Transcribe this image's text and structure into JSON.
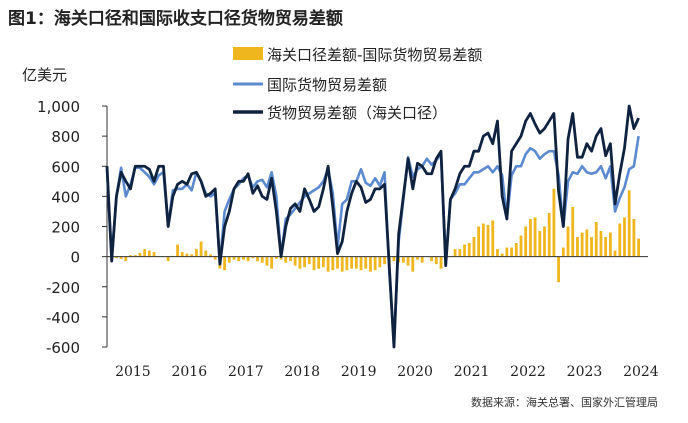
{
  "figure": {
    "title": "图1：海关口径和国际收支口径货物贸易差额",
    "source": "数据来源：海关总署、国家外汇管理局"
  },
  "colors": {
    "bar": "#f0b61e",
    "bop": "#5b8ad0",
    "goods": "#0f2340",
    "axis": "#333333"
  },
  "chart_data": {
    "type": "bar+line",
    "title": "海关口径和国际收支口径货物贸易差额",
    "ylabel": "亿美元",
    "xlabel": "",
    "ylim": [
      -600,
      1000
    ],
    "yticks": [
      1000,
      800,
      600,
      400,
      200,
      0,
      -200,
      -400,
      -600
    ],
    "ytick_labels": [
      "1,000",
      "800",
      "600",
      "400",
      "200",
      "0",
      "-200",
      "-400",
      "-600"
    ],
    "x_start": "2015-01",
    "x_end": "2024-08",
    "xticks": [
      "2015",
      "2016",
      "2017",
      "2018",
      "2019",
      "2020",
      "2021",
      "2022",
      "2023",
      "2024"
    ],
    "grid": false,
    "legend_position": "top",
    "series": [
      {
        "name": "海关口径差额-国际货物贸易差额",
        "type": "bar",
        "start": "2015-01",
        "values": [
          0,
          -20,
          -10,
          -15,
          -30,
          10,
          10,
          25,
          50,
          40,
          30,
          0,
          0,
          -30,
          5,
          80,
          30,
          20,
          15,
          50,
          100,
          40,
          15,
          -20,
          -80,
          -90,
          -40,
          -20,
          -30,
          -20,
          -30,
          -10,
          -30,
          -40,
          -60,
          -80,
          -15,
          -20,
          -40,
          -30,
          -60,
          -80,
          -70,
          -50,
          -90,
          -80,
          -70,
          -100,
          -90,
          -80,
          -100,
          -90,
          -80,
          -80,
          -90,
          -80,
          -100,
          -90,
          -70,
          -50,
          -60,
          -30,
          -40,
          -40,
          -60,
          -100,
          -20,
          -40,
          0,
          -30,
          -50,
          -80,
          0,
          0,
          50,
          50,
          80,
          90,
          130,
          200,
          220,
          210,
          240,
          50,
          20,
          60,
          60,
          90,
          140,
          200,
          250,
          260,
          170,
          200,
          290,
          450,
          -170,
          60,
          200,
          330,
          130,
          160,
          180,
          130,
          230,
          170,
          130,
          160,
          40,
          220,
          260,
          440,
          250,
          120
        ]
      },
      {
        "name": "国际货物贸易差额",
        "type": "line",
        "start": "2015-01",
        "values": [
          580,
          -20,
          400,
          590,
          400,
          480,
          590,
          590,
          560,
          530,
          480,
          540,
          560,
          200,
          440,
          450,
          450,
          480,
          440,
          560,
          500,
          420,
          400,
          420,
          -50,
          300,
          380,
          450,
          480,
          520,
          540,
          460,
          500,
          510,
          460,
          560,
          400,
          0,
          250,
          280,
          320,
          360,
          400,
          420,
          440,
          460,
          500,
          580,
          420,
          60,
          350,
          380,
          500,
          500,
          580,
          490,
          470,
          520,
          470,
          560,
          -100,
          -580,
          100,
          380,
          660,
          530,
          580,
          600,
          650,
          610,
          640,
          680,
          -30,
          380,
          420,
          480,
          480,
          520,
          560,
          560,
          580,
          600,
          560,
          600,
          540,
          250,
          540,
          600,
          600,
          680,
          720,
          700,
          650,
          680,
          700,
          700,
          540,
          200,
          500,
          560,
          550,
          600,
          560,
          550,
          560,
          600,
          520,
          600,
          300,
          390,
          460,
          580,
          600,
          800
        ]
      },
      {
        "name": "货物贸易差额（海关口径）",
        "type": "line",
        "start": "2015-01",
        "values": [
          600,
          -30,
          400,
          560,
          500,
          450,
          600,
          600,
          600,
          580,
          500,
          600,
          600,
          200,
          400,
          480,
          500,
          480,
          550,
          560,
          500,
          400,
          420,
          450,
          -50,
          200,
          300,
          450,
          500,
          500,
          550,
          420,
          470,
          400,
          380,
          520,
          300,
          0,
          200,
          320,
          350,
          300,
          450,
          380,
          300,
          330,
          450,
          600,
          330,
          20,
          100,
          300,
          420,
          500,
          460,
          360,
          380,
          450,
          450,
          480,
          -60,
          -600,
          150,
          400,
          650,
          450,
          620,
          600,
          550,
          550,
          650,
          700,
          -60,
          380,
          450,
          550,
          600,
          600,
          700,
          700,
          800,
          820,
          750,
          900,
          400,
          250,
          700,
          750,
          800,
          900,
          950,
          880,
          820,
          850,
          900,
          950,
          430,
          200,
          780,
          950,
          660,
          660,
          750,
          700,
          800,
          850,
          670,
          750,
          350,
          550,
          720,
          1000,
          850,
          920
        ]
      }
    ]
  },
  "legend": {
    "items": [
      {
        "label": "海关口径差额-国际货物贸易差额"
      },
      {
        "label": "国际货物贸易差额"
      },
      {
        "label": "货物贸易差额（海关口径）"
      }
    ]
  }
}
